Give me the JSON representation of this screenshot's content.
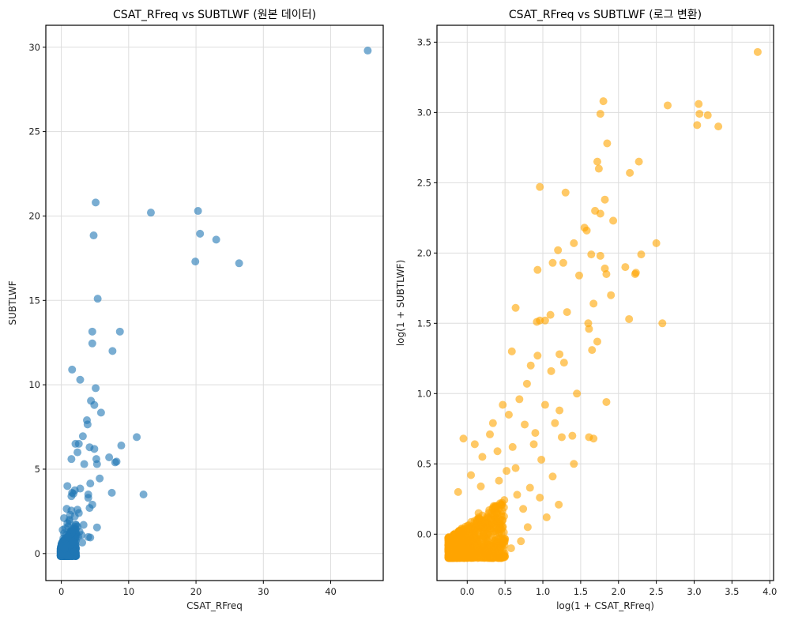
{
  "chart_data": [
    {
      "type": "scatter",
      "title": "CSAT_RFreq vs SUBTLWF (원본 데이터)",
      "xlabel": "CSAT_RFreq",
      "ylabel": "SUBTLWF",
      "xlim": [
        -2.3,
        47.8
      ],
      "ylim": [
        -1.6,
        31.3
      ],
      "xticks": [
        0,
        10,
        20,
        30,
        40
      ],
      "xtick_labels": [
        "0",
        "10",
        "20",
        "30",
        "40"
      ],
      "yticks": [
        0,
        5,
        10,
        15,
        20,
        25,
        30
      ],
      "ytick_labels": [
        "0",
        "5",
        "10",
        "15",
        "20",
        "25",
        "30"
      ],
      "grid": true,
      "color": "#1f77b4",
      "alpha": 0.6,
      "points": [
        [
          45.5,
          29.8
        ],
        [
          5.1,
          20.8
        ],
        [
          13.3,
          20.2
        ],
        [
          20.3,
          20.3
        ],
        [
          4.8,
          18.85
        ],
        [
          20.6,
          18.95
        ],
        [
          23.0,
          18.6
        ],
        [
          19.9,
          17.3
        ],
        [
          26.4,
          17.2
        ],
        [
          5.4,
          15.1
        ],
        [
          4.6,
          13.15
        ],
        [
          8.7,
          13.15
        ],
        [
          4.6,
          12.45
        ],
        [
          7.6,
          12.0
        ],
        [
          1.6,
          10.9
        ],
        [
          2.8,
          10.3
        ],
        [
          5.1,
          9.8
        ],
        [
          4.4,
          9.05
        ],
        [
          4.9,
          8.8
        ],
        [
          5.9,
          8.35
        ],
        [
          3.8,
          7.9
        ],
        [
          3.9,
          7.65
        ],
        [
          3.2,
          6.95
        ],
        [
          11.2,
          6.9
        ],
        [
          8.9,
          6.4
        ],
        [
          2.1,
          6.5
        ],
        [
          2.6,
          6.5
        ],
        [
          4.2,
          6.3
        ],
        [
          4.9,
          6.2
        ],
        [
          2.4,
          6.0
        ],
        [
          1.5,
          5.6
        ],
        [
          7.1,
          5.7
        ],
        [
          5.2,
          5.6
        ],
        [
          3.4,
          5.3
        ],
        [
          5.3,
          5.3
        ],
        [
          8.2,
          5.45
        ],
        [
          8.0,
          5.4
        ],
        [
          4.3,
          4.15
        ],
        [
          5.7,
          4.45
        ],
        [
          0.9,
          4.0
        ],
        [
          2.8,
          3.85
        ],
        [
          2.0,
          3.75
        ],
        [
          1.6,
          3.6
        ],
        [
          1.8,
          3.55
        ],
        [
          4.0,
          3.5
        ],
        [
          7.5,
          3.6
        ],
        [
          12.2,
          3.5
        ],
        [
          1.5,
          3.4
        ],
        [
          4.0,
          3.3
        ],
        [
          4.6,
          2.9
        ],
        [
          4.2,
          2.7
        ],
        [
          2.4,
          2.6
        ],
        [
          1.5,
          2.55
        ],
        [
          0.8,
          2.65
        ],
        [
          2.6,
          2.4
        ],
        [
          1.3,
          2.3
        ],
        [
          3.3,
          1.7
        ],
        [
          5.3,
          1.55
        ],
        [
          2.0,
          2.2
        ],
        [
          3.0,
          1.1
        ],
        [
          4.3,
          0.95
        ],
        [
          4.0,
          0.98
        ],
        [
          3.1,
          0.65
        ],
        [
          2.2,
          1.2
        ],
        [
          1.2,
          1.9
        ],
        [
          0.6,
          1.5
        ],
        [
          2.5,
          1.0
        ],
        [
          1.8,
          1.5
        ],
        [
          0.4,
          1.2
        ],
        [
          1.0,
          1.6
        ],
        [
          1.4,
          0.9
        ],
        [
          0.9,
          0.6
        ],
        [
          0.5,
          0.8
        ],
        [
          2.1,
          0.5
        ],
        [
          1.6,
          0.3
        ],
        [
          0.2,
          0.4
        ],
        [
          1.1,
          0.2
        ],
        [
          0.6,
          0.1
        ],
        [
          0.3,
          -0.05
        ],
        [
          0.0,
          0.0
        ],
        [
          0.8,
          -0.1
        ],
        [
          1.9,
          0.1
        ],
        [
          1.3,
          0.5
        ],
        [
          0.1,
          0.6
        ],
        [
          0.7,
          1.1
        ],
        [
          2.4,
          1.6
        ],
        [
          1.5,
          1.2
        ],
        [
          0.3,
          0.9
        ],
        [
          1.7,
          0.7
        ],
        [
          0.5,
          0.3
        ],
        [
          1.0,
          1.0
        ],
        [
          0.2,
          1.4
        ],
        [
          2.7,
          1.3
        ],
        [
          1.2,
          2.0
        ],
        [
          0.9,
          1.8
        ],
        [
          0.4,
          2.1
        ]
      ],
      "dense_cluster": {
        "x_range": [
          -0.1,
          2.2
        ],
        "y_range": [
          -0.15,
          1.8
        ],
        "count": 600
      }
    },
    {
      "type": "scatter",
      "title": "CSAT_RFreq vs SUBTLWF (로그 변환)",
      "xlabel": "log(1 + CSAT_RFreq)",
      "ylabel": "log(1 + SUBTLWF)",
      "xlim": [
        -0.4,
        4.05
      ],
      "ylim": [
        -0.33,
        3.62
      ],
      "xticks": [
        0.0,
        0.5,
        1.0,
        1.5,
        2.0,
        2.5,
        3.0,
        3.5,
        4.0
      ],
      "xtick_labels": [
        "0.0",
        "0.5",
        "1.0",
        "1.5",
        "2.0",
        "2.5",
        "3.0",
        "3.5",
        "4.0"
      ],
      "yticks": [
        0.0,
        0.5,
        1.0,
        1.5,
        2.0,
        2.5,
        3.0,
        3.5
      ],
      "ytick_labels": [
        "0.0",
        "0.5",
        "1.0",
        "1.5",
        "2.0",
        "2.5",
        "3.0",
        "3.5"
      ],
      "grid": true,
      "color": "#ffa500",
      "alpha": 0.6,
      "points": [
        [
          3.84,
          3.43
        ],
        [
          1.8,
          3.08
        ],
        [
          2.65,
          3.05
        ],
        [
          3.06,
          3.06
        ],
        [
          1.76,
          2.99
        ],
        [
          3.07,
          2.99
        ],
        [
          3.18,
          2.98
        ],
        [
          3.04,
          2.91
        ],
        [
          3.32,
          2.9
        ],
        [
          1.85,
          2.78
        ],
        [
          1.72,
          2.65
        ],
        [
          2.27,
          2.65
        ],
        [
          1.74,
          2.6
        ],
        [
          2.15,
          2.57
        ],
        [
          0.96,
          2.47
        ],
        [
          1.3,
          2.43
        ],
        [
          1.82,
          2.38
        ],
        [
          1.69,
          2.3
        ],
        [
          1.76,
          2.28
        ],
        [
          1.93,
          2.23
        ],
        [
          1.55,
          2.18
        ],
        [
          1.58,
          2.16
        ],
        [
          1.41,
          2.07
        ],
        [
          2.5,
          2.07
        ],
        [
          2.3,
          1.99
        ],
        [
          1.13,
          1.93
        ],
        [
          1.27,
          1.93
        ],
        [
          1.64,
          1.99
        ],
        [
          1.76,
          1.98
        ],
        [
          1.2,
          2.02
        ],
        [
          0.93,
          1.88
        ],
        [
          2.09,
          1.9
        ],
        [
          1.82,
          1.89
        ],
        [
          1.48,
          1.84
        ],
        [
          1.84,
          1.85
        ],
        [
          2.23,
          1.86
        ],
        [
          2.22,
          1.85
        ],
        [
          1.67,
          1.64
        ],
        [
          1.9,
          1.7
        ],
        [
          0.64,
          1.61
        ],
        [
          1.32,
          1.58
        ],
        [
          1.1,
          1.56
        ],
        [
          0.96,
          1.52
        ],
        [
          1.03,
          1.52
        ],
        [
          1.6,
          1.5
        ],
        [
          2.14,
          1.53
        ],
        [
          2.58,
          1.5
        ],
        [
          0.92,
          1.51
        ],
        [
          1.61,
          1.46
        ],
        [
          1.72,
          1.37
        ],
        [
          1.65,
          1.31
        ],
        [
          1.22,
          1.28
        ],
        [
          0.93,
          1.27
        ],
        [
          0.59,
          1.3
        ],
        [
          1.28,
          1.22
        ],
        [
          0.84,
          1.2
        ],
        [
          1.45,
          1.0
        ],
        [
          1.84,
          0.94
        ],
        [
          1.11,
          1.16
        ],
        [
          1.39,
          0.7
        ],
        [
          1.67,
          0.68
        ],
        [
          1.61,
          0.69
        ],
        [
          1.41,
          0.5
        ],
        [
          1.16,
          0.79
        ],
        [
          0.79,
          1.07
        ],
        [
          0.47,
          0.92
        ],
        [
          1.25,
          0.69
        ],
        [
          1.03,
          0.92
        ],
        [
          0.34,
          0.79
        ],
        [
          0.69,
          0.96
        ],
        [
          0.88,
          0.64
        ],
        [
          0.64,
          0.47
        ],
        [
          0.4,
          0.59
        ],
        [
          1.13,
          0.41
        ],
        [
          0.96,
          0.26
        ],
        [
          0.18,
          0.34
        ],
        [
          0.74,
          0.18
        ],
        [
          0.47,
          0.1
        ],
        [
          0.26,
          -0.05
        ],
        [
          1.21,
          0.21
        ],
        [
          0.98,
          0.53
        ],
        [
          0.6,
          0.62
        ],
        [
          0.3,
          0.71
        ],
        [
          0.55,
          0.85
        ],
        [
          0.76,
          0.78
        ],
        [
          0.2,
          0.55
        ],
        [
          0.1,
          0.64
        ],
        [
          -0.05,
          0.68
        ],
        [
          0.05,
          0.42
        ],
        [
          0.42,
          0.38
        ],
        [
          0.83,
          0.33
        ],
        [
          0.66,
          0.28
        ],
        [
          0.52,
          0.45
        ],
        [
          1.05,
          0.12
        ],
        [
          1.22,
          0.88
        ],
        [
          0.9,
          0.72
        ],
        [
          0.35,
          0.2
        ],
        [
          0.15,
          0.15
        ],
        [
          -0.12,
          0.3
        ],
        [
          0.58,
          -0.1
        ],
        [
          0.71,
          -0.05
        ],
        [
          0.8,
          0.05
        ]
      ],
      "dense_cluster": {
        "x_range": [
          -0.25,
          0.5
        ],
        "y_range": [
          -0.17,
          0.25
        ],
        "count": 900
      }
    }
  ]
}
